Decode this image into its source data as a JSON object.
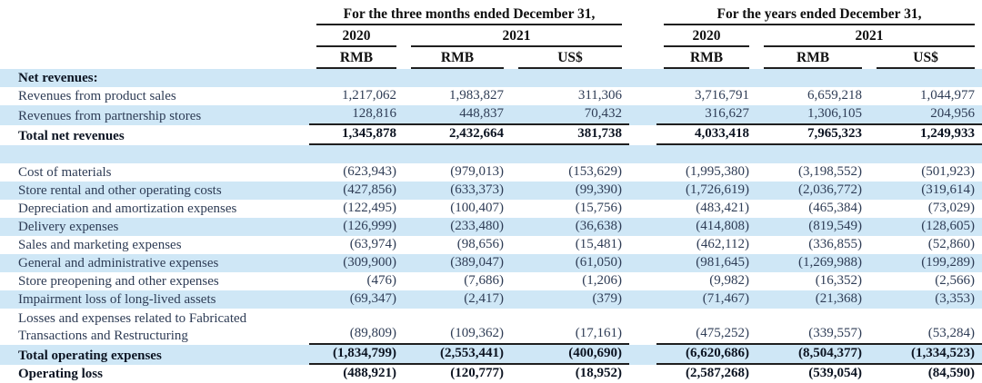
{
  "header": {
    "group1": "For the three months ended December 31,",
    "group2": "For the years ended December 31,",
    "year_2020": "2020",
    "year_2021": "2021",
    "currencies": [
      "RMB",
      "RMB",
      "US$",
      "RMB",
      "RMB",
      "US$"
    ]
  },
  "colors": {
    "row_highlight": "#cfe7f6",
    "text": "#2e3c55",
    "bold_text": "#0c1422",
    "rule": "#1f1f1f"
  },
  "rows": [
    {
      "label": "Net revenues:",
      "bold": true,
      "shaded": true,
      "underline": false,
      "values": [
        "",
        "",
        "",
        "",
        "",
        ""
      ]
    },
    {
      "label": "Revenues from product sales",
      "bold": false,
      "shaded": false,
      "underline": false,
      "values": [
        "1,217,062",
        "1,983,827",
        "311,306",
        "3,716,791",
        "6,659,218",
        "1,044,977"
      ]
    },
    {
      "label": "Revenues from partnership stores",
      "bold": false,
      "shaded": true,
      "underline": true,
      "values": [
        "128,816",
        "448,837",
        "70,432",
        "316,627",
        "1,306,105",
        "204,956"
      ]
    },
    {
      "label": "Total net revenues",
      "bold": true,
      "shaded": false,
      "underline": true,
      "values": [
        "1,345,878",
        "2,432,664",
        "381,738",
        "4,033,418",
        "7,965,323",
        "1,249,933"
      ]
    },
    {
      "label": "",
      "bold": false,
      "shaded": true,
      "underline": false,
      "values": [
        "",
        "",
        "",
        "",
        "",
        ""
      ]
    },
    {
      "label": "Cost of materials",
      "bold": false,
      "shaded": false,
      "underline": false,
      "values": [
        "(623,943)",
        "(979,013)",
        "(153,629)",
        "(1,995,380)",
        "(3,198,552)",
        "(501,923)"
      ]
    },
    {
      "label": "Store rental and other operating costs",
      "bold": false,
      "shaded": true,
      "underline": false,
      "values": [
        "(427,856)",
        "(633,373)",
        "(99,390)",
        "(1,726,619)",
        "(2,036,772)",
        "(319,614)"
      ]
    },
    {
      "label": "Depreciation and amortization expenses",
      "bold": false,
      "shaded": false,
      "underline": false,
      "values": [
        "(122,495)",
        "(100,407)",
        "(15,756)",
        "(483,421)",
        "(465,384)",
        "(73,029)"
      ]
    },
    {
      "label": "Delivery expenses",
      "bold": false,
      "shaded": true,
      "underline": false,
      "values": [
        "(126,999)",
        "(233,480)",
        "(36,638)",
        "(414,808)",
        "(819,549)",
        "(128,605)"
      ]
    },
    {
      "label": "Sales and marketing expenses",
      "bold": false,
      "shaded": false,
      "underline": false,
      "values": [
        "(63,974)",
        "(98,656)",
        "(15,481)",
        "(462,112)",
        "(336,855)",
        "(52,860)"
      ]
    },
    {
      "label": "General and administrative expenses",
      "bold": false,
      "shaded": true,
      "underline": false,
      "values": [
        "(309,900)",
        "(389,047)",
        "(61,050)",
        "(981,645)",
        "(1,269,988)",
        "(199,289)"
      ]
    },
    {
      "label": "Store preopening and other expenses",
      "bold": false,
      "shaded": false,
      "underline": false,
      "values": [
        "(476)",
        "(7,686)",
        "(1,206)",
        "(9,982)",
        "(16,352)",
        "(2,566)"
      ]
    },
    {
      "label": "Impairment loss of long-lived assets",
      "bold": false,
      "shaded": true,
      "underline": false,
      "values": [
        "(69,347)",
        "(2,417)",
        "(379)",
        "(71,467)",
        "(21,368)",
        "(3,353)"
      ]
    },
    {
      "label": "Losses and expenses related to Fabricated",
      "label2": "Transactions and Restructuring",
      "bold": false,
      "shaded": false,
      "underline": true,
      "values": [
        "(89,809)",
        "(109,362)",
        "(17,161)",
        "(475,252)",
        "(339,557)",
        "(53,284)"
      ]
    },
    {
      "label": "Total operating expenses",
      "bold": true,
      "shaded": true,
      "underline": true,
      "values": [
        "(1,834,799)",
        "(2,553,441)",
        "(400,690)",
        "(6,620,686)",
        "(8,504,377)",
        "(1,334,523)"
      ]
    },
    {
      "label": "Operating loss",
      "bold": true,
      "shaded": false,
      "underline": false,
      "values": [
        "(488,921)",
        "(120,777)",
        "(18,952)",
        "(2,587,268)",
        "(539,054)",
        "(84,590)"
      ]
    },
    {
      "label": "",
      "bold": false,
      "shaded": true,
      "partial": true,
      "underline": false,
      "values": [
        "",
        "",
        "",
        "",
        "",
        ""
      ]
    }
  ]
}
